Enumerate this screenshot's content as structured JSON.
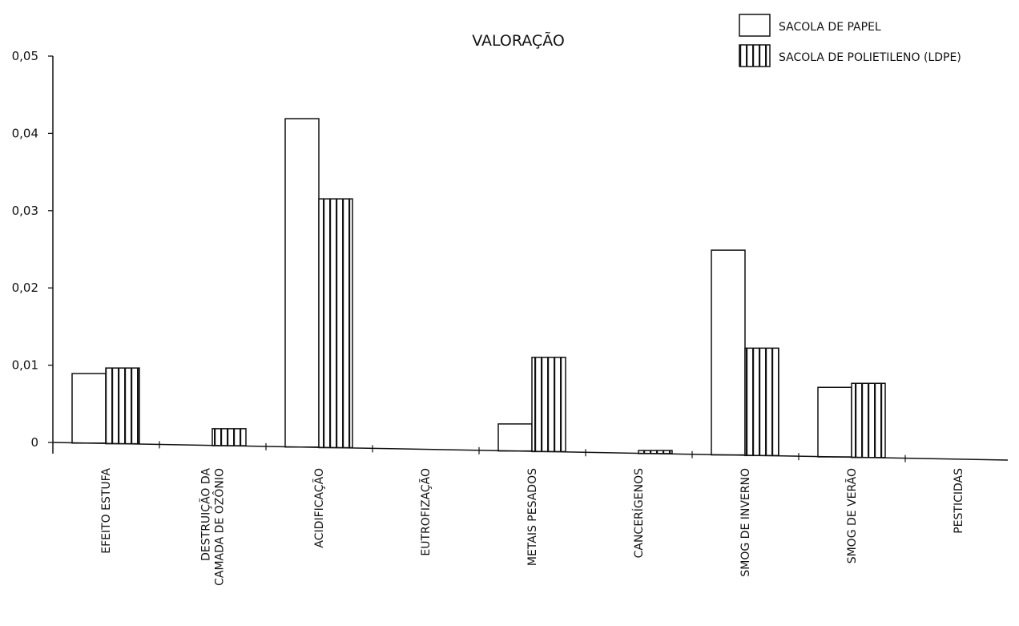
{
  "chart_data": {
    "type": "bar",
    "title": "VALORAÇÃO",
    "xlabel": "",
    "ylabel": "",
    "ylim": [
      0,
      0.05
    ],
    "y_ticks": [
      "0",
      "0,01",
      "0,02",
      "0,03",
      "0,04",
      "0,05"
    ],
    "y_tick_values": [
      0,
      0.01,
      0.02,
      0.03,
      0.04,
      0.05
    ],
    "categories": [
      [
        "EFEITO ESTUFA"
      ],
      [
        "DESTRUIÇÃO DA",
        "CAMADA DE OZÔNIO"
      ],
      [
        "ACIDIFICAÇÃO"
      ],
      [
        "EUTROFIZAÇÃO"
      ],
      [
        "METAIS PESADOS"
      ],
      [
        "CANCERÍGENOS"
      ],
      [
        "SMOG DE INVERNO"
      ],
      [
        "SMOG DE VERÃO"
      ],
      [
        "PESTICIDAS"
      ]
    ],
    "series": [
      {
        "name": "SACOLA DE PAPEL",
        "pattern": "plain",
        "values": [
          0.009,
          0,
          0.0425,
          0,
          0.0035,
          0,
          0.0265,
          0.009,
          0
        ]
      },
      {
        "name": "SACOLA DE POLIETILENO (LDPE)",
        "pattern": "vertical-stripes",
        "values": [
          0.0098,
          0.0022,
          0.0322,
          0,
          0.0122,
          0.0004,
          0.0139,
          0.0096,
          0
        ]
      }
    ],
    "legend_position": "top-right",
    "grid": false,
    "colors": {
      "bar_fill": "#ffffff",
      "stroke": "#111111"
    }
  }
}
